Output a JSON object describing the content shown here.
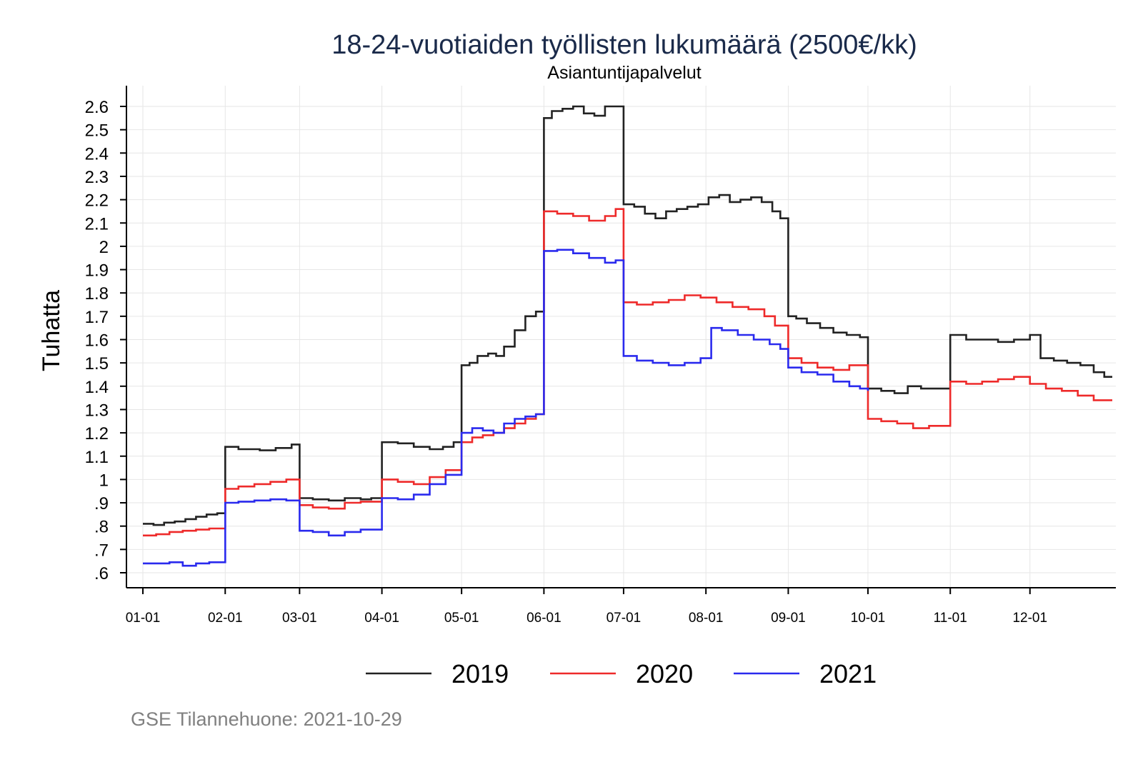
{
  "chart_data": {
    "type": "line",
    "title": "18-24-vuotiaiden työllisten lukumäärä (2500€/kk)",
    "subtitle": "Asiantuntijapalvelut",
    "ylabel": "Tuhatta",
    "xlabel": "",
    "ylim": [
      0.57,
      2.68
    ],
    "grid": true,
    "legend_position": "bottom",
    "source": "GSE Tilannehuone: 2021-10-29",
    "y_ticks": [
      0.6,
      0.7,
      0.8,
      0.9,
      1.0,
      1.1,
      1.2,
      1.3,
      1.4,
      1.5,
      1.6,
      1.7,
      1.8,
      1.9,
      2.0,
      2.1,
      2.2,
      2.3,
      2.4,
      2.5,
      2.6
    ],
    "y_tick_labels": [
      ".6",
      ".7",
      ".8",
      ".9",
      "1",
      "1.1",
      "1.2",
      "1.3",
      "1.4",
      "1.5",
      "1.6",
      "1.7",
      "1.8",
      "1.9",
      "2",
      "2.1",
      "2.2",
      "2.3",
      "2.4",
      "2.5",
      "2.6"
    ],
    "x_domain": [
      0,
      365
    ],
    "x_ticks": [
      {
        "day": 0,
        "label": "01-01"
      },
      {
        "day": 31,
        "label": "02-01"
      },
      {
        "day": 59,
        "label": "03-01"
      },
      {
        "day": 90,
        "label": "04-01"
      },
      {
        "day": 120,
        "label": "05-01"
      },
      {
        "day": 151,
        "label": "06-01"
      },
      {
        "day": 181,
        "label": "07-01"
      },
      {
        "day": 212,
        "label": "08-01"
      },
      {
        "day": 243,
        "label": "09-01"
      },
      {
        "day": 273,
        "label": "10-01"
      },
      {
        "day": 304,
        "label": "11-01"
      },
      {
        "day": 334,
        "label": "12-01"
      }
    ],
    "x_unit": "day of year",
    "series": [
      {
        "name": "2019",
        "color": "#222222",
        "x": [
          0,
          4,
          8,
          12,
          16,
          20,
          24,
          28,
          31,
          36,
          44,
          50,
          56,
          59,
          64,
          70,
          76,
          82,
          86,
          90,
          96,
          102,
          108,
          113,
          117,
          120,
          123,
          126,
          130,
          133,
          136,
          140,
          144,
          148,
          151,
          154,
          158,
          162,
          166,
          170,
          174,
          178,
          181,
          185,
          189,
          193,
          197,
          201,
          205,
          209,
          213,
          217,
          221,
          225,
          229,
          233,
          237,
          240,
          243,
          246,
          250,
          255,
          260,
          265,
          270,
          273,
          278,
          283,
          288,
          293,
          298,
          304,
          310,
          316,
          322,
          328,
          334,
          338,
          343,
          348,
          353,
          358,
          362,
          365
        ],
        "values": [
          0.81,
          0.805,
          0.815,
          0.82,
          0.83,
          0.84,
          0.85,
          0.855,
          1.14,
          1.13,
          1.125,
          1.135,
          1.15,
          0.92,
          0.915,
          0.91,
          0.92,
          0.915,
          0.92,
          1.16,
          1.155,
          1.14,
          1.13,
          1.14,
          1.16,
          1.49,
          1.5,
          1.53,
          1.54,
          1.53,
          1.57,
          1.64,
          1.7,
          1.72,
          2.55,
          2.58,
          2.59,
          2.6,
          2.57,
          2.56,
          2.6,
          2.6,
          2.18,
          2.17,
          2.14,
          2.12,
          2.15,
          2.16,
          2.17,
          2.18,
          2.21,
          2.22,
          2.19,
          2.2,
          2.21,
          2.19,
          2.15,
          2.12,
          1.7,
          1.69,
          1.67,
          1.65,
          1.63,
          1.62,
          1.61,
          1.39,
          1.38,
          1.37,
          1.4,
          1.39,
          1.39,
          1.62,
          1.6,
          1.6,
          1.59,
          1.6,
          1.62,
          1.52,
          1.51,
          1.5,
          1.49,
          1.46,
          1.44,
          1.44
        ]
      },
      {
        "name": "2020",
        "color": "#ee2a2a",
        "x": [
          0,
          5,
          10,
          15,
          20,
          25,
          31,
          36,
          42,
          48,
          54,
          59,
          64,
          70,
          76,
          82,
          90,
          96,
          102,
          108,
          114,
          120,
          124,
          128,
          132,
          136,
          140,
          144,
          148,
          151,
          156,
          162,
          168,
          174,
          178,
          181,
          186,
          192,
          198,
          204,
          210,
          216,
          222,
          228,
          234,
          238,
          243,
          248,
          254,
          260,
          266,
          273,
          278,
          284,
          290,
          296,
          304,
          310,
          316,
          322,
          328,
          334,
          340,
          346,
          352,
          358,
          362,
          365
        ],
        "values": [
          0.76,
          0.765,
          0.775,
          0.78,
          0.785,
          0.79,
          0.96,
          0.97,
          0.98,
          0.99,
          1.0,
          0.89,
          0.88,
          0.875,
          0.9,
          0.905,
          1.0,
          0.99,
          0.98,
          1.01,
          1.04,
          1.16,
          1.18,
          1.19,
          1.2,
          1.22,
          1.24,
          1.26,
          1.28,
          2.15,
          2.14,
          2.13,
          2.11,
          2.13,
          2.16,
          1.76,
          1.75,
          1.76,
          1.77,
          1.79,
          1.78,
          1.76,
          1.74,
          1.73,
          1.7,
          1.66,
          1.52,
          1.5,
          1.48,
          1.47,
          1.49,
          1.26,
          1.25,
          1.24,
          1.22,
          1.23,
          1.42,
          1.41,
          1.42,
          1.43,
          1.44,
          1.41,
          1.39,
          1.38,
          1.36,
          1.34,
          1.34,
          1.34
        ]
      },
      {
        "name": "2021",
        "color": "#2a2aee",
        "x": [
          0,
          5,
          10,
          15,
          20,
          25,
          31,
          36,
          42,
          48,
          54,
          59,
          64,
          70,
          76,
          82,
          90,
          96,
          102,
          108,
          114,
          120,
          124,
          128,
          132,
          136,
          140,
          144,
          148,
          151,
          156,
          162,
          168,
          174,
          178,
          181,
          186,
          192,
          198,
          204,
          210,
          214,
          218,
          224,
          230,
          236,
          240,
          243,
          248,
          254,
          260,
          266,
          270,
          273
        ],
        "values": [
          0.64,
          0.64,
          0.645,
          0.63,
          0.64,
          0.645,
          0.9,
          0.905,
          0.91,
          0.915,
          0.91,
          0.78,
          0.775,
          0.76,
          0.775,
          0.785,
          0.92,
          0.915,
          0.935,
          0.98,
          1.02,
          1.2,
          1.22,
          1.21,
          1.2,
          1.24,
          1.26,
          1.27,
          1.28,
          1.98,
          1.985,
          1.97,
          1.95,
          1.93,
          1.94,
          1.53,
          1.51,
          1.5,
          1.49,
          1.5,
          1.52,
          1.65,
          1.64,
          1.62,
          1.6,
          1.58,
          1.56,
          1.48,
          1.46,
          1.45,
          1.42,
          1.4,
          1.39,
          1.38
        ]
      }
    ]
  }
}
